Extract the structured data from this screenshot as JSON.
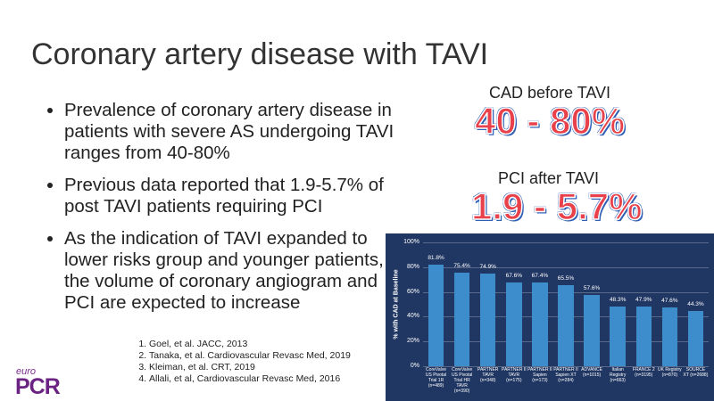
{
  "title": "Coronary artery disease with TAVI",
  "bullets": [
    "Prevalence of coronary artery disease in patients with severe AS undergoing TAVI ranges from 40-80%",
    "Previous data reported that 1.9-5.7% of post TAVI patients requiring PCI",
    "As the indication of TAVI expanded to lower risks group and younger patients, the volume of coronary angiogram and PCI are expected to increase"
  ],
  "stats": [
    {
      "label": "CAD before TAVI",
      "value": "40 - 80%"
    },
    {
      "label": "PCI after TAVI",
      "value": "1.9 - 5.7%"
    }
  ],
  "references": [
    "Goel, et al. JACC, 2013",
    "Tanaka, et al. Cardiovascular Revasc Med, 2019",
    "Kleiman, et al. CRT, 2019",
    "Allali, et al, Cardiovascular Revasc Med, 2016"
  ],
  "logo": {
    "top": "euro",
    "main": "PCR"
  },
  "chart_data": {
    "type": "bar",
    "y_label": "% with CAD at Baseline",
    "categories": [
      "CoreValve US Pivotal Trial 1R (n=489)",
      "CoreValve US Pivotal Trial HR TAVR (n=390)",
      "PARTNER TAVR (n=348)",
      "PARTNER II TAVR (n=175)",
      "PARTNER II Sapien (n=173)",
      "PARTNER II Sapien XT (n=284)",
      "ADVANCE (n=1015)",
      "Italian Registry (n=663)",
      "FRANCE 2 (n=3195)",
      "UK Registry (n=870)",
      "SOURCE XT (n=2688)"
    ],
    "values": [
      81.8,
      75.4,
      74.9,
      67.6,
      67.4,
      65.5,
      57.6,
      48.3,
      47.9,
      47.6,
      44.3
    ],
    "value_labels": [
      "81.8%",
      "75.4%",
      "74.9%",
      "67.6%",
      "67.4%",
      "65.5%",
      "57.6%",
      "48.3%",
      "47.9%",
      "47.6%",
      "44.3%"
    ],
    "color": "#3d8ccb",
    "ylim": [
      0,
      100
    ],
    "yticks": [
      {
        "value": 0,
        "label": "0%"
      },
      {
        "value": 20,
        "label": "20%"
      },
      {
        "value": 40,
        "label": "40%"
      },
      {
        "value": 60,
        "label": "60%"
      },
      {
        "value": 80,
        "label": "80%"
      },
      {
        "value": 100,
        "label": "100%"
      }
    ],
    "grid": true
  }
}
